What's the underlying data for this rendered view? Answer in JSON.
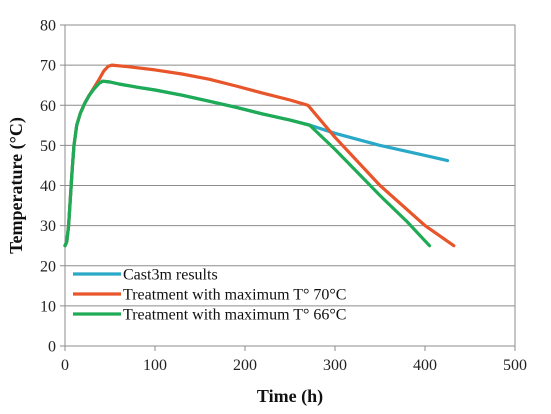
{
  "chart_data": {
    "type": "line",
    "xlabel": "Time (h)",
    "ylabel": "Temperature (°C)",
    "xlim": [
      0,
      500
    ],
    "ylim": [
      0,
      80
    ],
    "xticks": [
      0,
      100,
      200,
      300,
      400,
      500
    ],
    "yticks": [
      0,
      10,
      20,
      30,
      40,
      50,
      60,
      70,
      80
    ],
    "grid": "horizontal",
    "legend_position": "bottom-left",
    "series": [
      {
        "name": "Cast3m results",
        "color": "#2aa8c8",
        "points": [
          [
            0,
            25
          ],
          [
            2,
            26
          ],
          [
            4,
            30
          ],
          [
            6,
            37
          ],
          [
            8,
            44
          ],
          [
            10,
            50
          ],
          [
            13,
            55
          ],
          [
            17,
            58
          ],
          [
            22,
            60.5
          ],
          [
            27,
            62.5
          ],
          [
            32,
            64
          ],
          [
            38,
            65.5
          ],
          [
            42,
            66
          ],
          [
            50,
            65.8
          ],
          [
            60,
            65.3
          ],
          [
            80,
            64.5
          ],
          [
            100,
            63.8
          ],
          [
            130,
            62.5
          ],
          [
            160,
            61
          ],
          [
            190,
            59.5
          ],
          [
            220,
            57.8
          ],
          [
            250,
            56.3
          ],
          [
            270,
            55.2
          ],
          [
            300,
            53
          ],
          [
            350,
            50
          ],
          [
            400,
            47.5
          ],
          [
            425,
            46.2
          ]
        ]
      },
      {
        "name": "Treatment with maximum T° 70°C",
        "color": "#e8552a",
        "points": [
          [
            0,
            25
          ],
          [
            2,
            26
          ],
          [
            4,
            30
          ],
          [
            6,
            37
          ],
          [
            8,
            44
          ],
          [
            10,
            50
          ],
          [
            13,
            55
          ],
          [
            17,
            58
          ],
          [
            22,
            60.5
          ],
          [
            27,
            62.5
          ],
          [
            32,
            64.3
          ],
          [
            38,
            66.5
          ],
          [
            43,
            68.5
          ],
          [
            48,
            69.7
          ],
          [
            52,
            70
          ],
          [
            70,
            69.6
          ],
          [
            100,
            68.8
          ],
          [
            130,
            67.8
          ],
          [
            160,
            66.5
          ],
          [
            190,
            64.8
          ],
          [
            220,
            63
          ],
          [
            250,
            61.3
          ],
          [
            270,
            60
          ],
          [
            300,
            52
          ],
          [
            350,
            40
          ],
          [
            400,
            30
          ],
          [
            432,
            25
          ]
        ]
      },
      {
        "name": "Treatment with maximum T° 66°C",
        "color": "#1faa55",
        "points": [
          [
            0,
            25
          ],
          [
            2,
            26
          ],
          [
            4,
            30
          ],
          [
            6,
            37
          ],
          [
            8,
            44
          ],
          [
            10,
            50
          ],
          [
            13,
            55
          ],
          [
            17,
            58
          ],
          [
            22,
            60.5
          ],
          [
            27,
            62.5
          ],
          [
            32,
            64
          ],
          [
            38,
            65.5
          ],
          [
            42,
            66
          ],
          [
            50,
            65.8
          ],
          [
            60,
            65.3
          ],
          [
            80,
            64.5
          ],
          [
            100,
            63.8
          ],
          [
            130,
            62.5
          ],
          [
            160,
            61
          ],
          [
            190,
            59.5
          ],
          [
            220,
            57.8
          ],
          [
            250,
            56.3
          ],
          [
            272,
            55
          ],
          [
            300,
            49
          ],
          [
            350,
            37.5
          ],
          [
            380,
            31
          ],
          [
            405,
            25
          ]
        ]
      }
    ]
  }
}
